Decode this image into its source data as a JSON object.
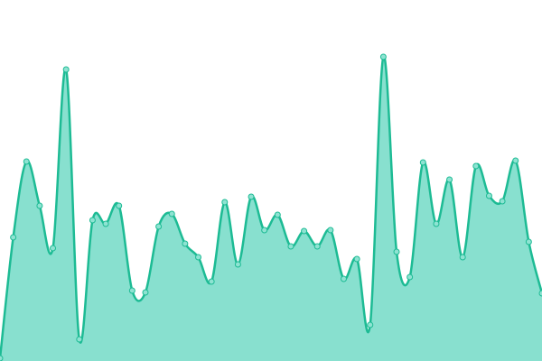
{
  "chart_data": {
    "type": "area",
    "values": [
      3,
      137,
      221,
      172,
      125,
      323,
      24,
      156,
      152,
      172,
      78,
      76,
      149,
      163,
      130,
      115,
      88,
      176,
      107,
      182,
      145,
      162,
      127,
      144,
      127,
      145,
      91,
      113,
      40,
      337,
      121,
      93,
      220,
      152,
      201,
      115,
      216,
      183,
      177,
      222,
      132,
      75
    ],
    "ylim": [
      0,
      400
    ],
    "color": "#1dbb94",
    "fill": "#88e0cf",
    "marker_fill": "#8ee3d2"
  }
}
